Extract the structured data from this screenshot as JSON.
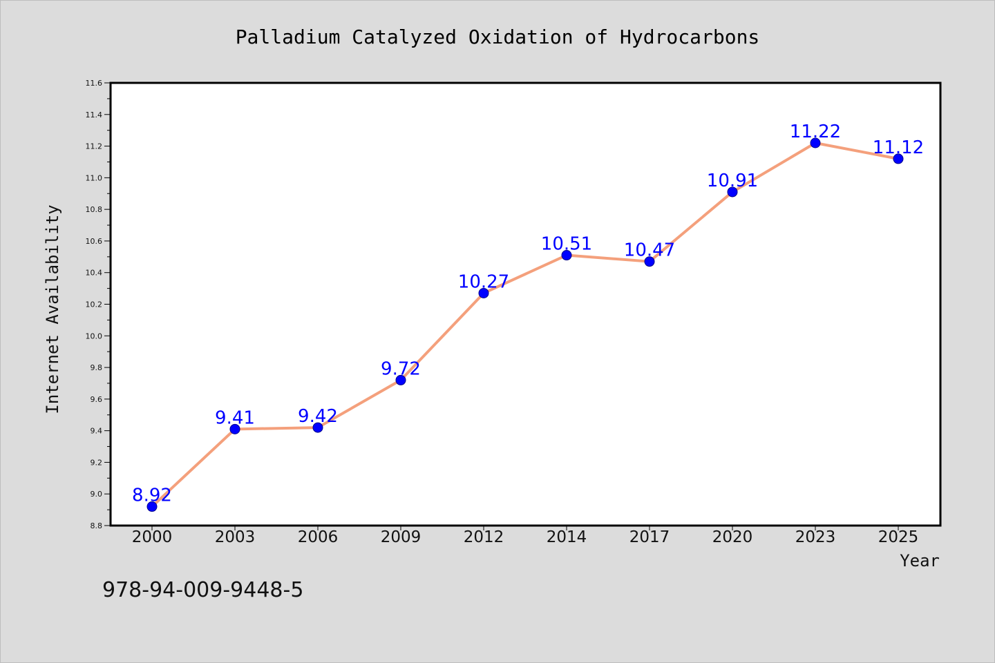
{
  "colors": {
    "background": "#dcdcdc",
    "plot_background": "#ffffff",
    "line": "#f4a07c",
    "marker_fill": "#0000ff",
    "marker_edge": "#00008b",
    "data_label": "#0000ff"
  },
  "footer": {
    "text": "978-94-009-9448-5"
  },
  "chart_data": {
    "type": "line",
    "title": "Palladium Catalyzed Oxidation of Hydrocarbons",
    "xlabel": "Year",
    "ylabel": "Internet Availability",
    "categories": [
      "2000",
      "2003",
      "2006",
      "2009",
      "2012",
      "2014",
      "2017",
      "2020",
      "2023",
      "2025"
    ],
    "series": [
      {
        "values": [
          8.92,
          9.41,
          9.42,
          9.72,
          10.27,
          10.51,
          10.47,
          10.91,
          11.22,
          11.12
        ],
        "labels": [
          "8.92",
          "9.41",
          "9.42",
          "9.72",
          "10.27",
          "10.51",
          "10.47",
          "10.91",
          "11.22",
          "11.12"
        ]
      }
    ],
    "ylim": [
      8.8,
      11.6
    ],
    "yticks": [
      "8.8",
      "9.0",
      "9.2",
      "9.4",
      "9.6",
      "9.8",
      "10.0",
      "10.2",
      "10.4",
      "10.6",
      "10.8",
      "11.0",
      "11.2",
      "11.4",
      "11.6"
    ],
    "grid": false,
    "legend": "none"
  }
}
